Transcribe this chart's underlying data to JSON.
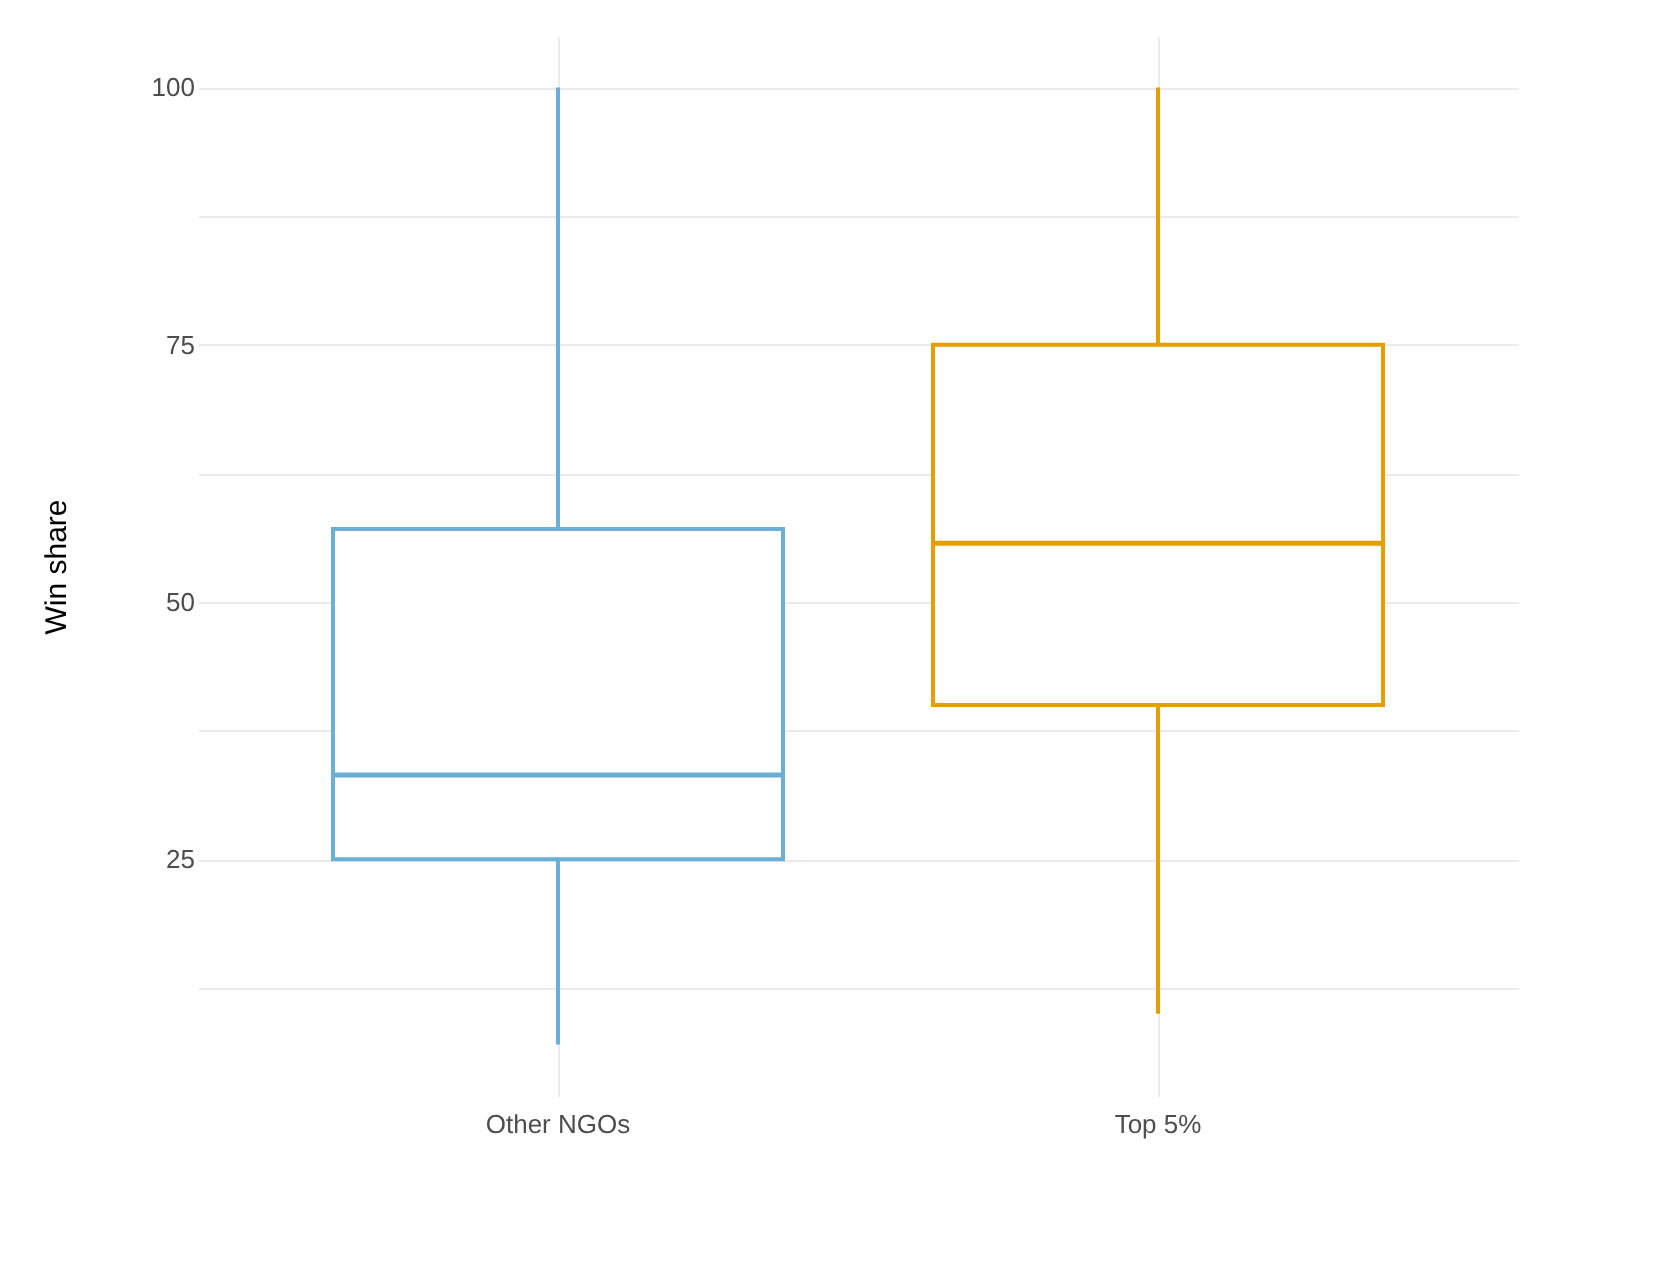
{
  "chart_data": {
    "type": "box",
    "ylabel": "Win share",
    "categories": [
      "Other NGOs",
      "Top 5%"
    ],
    "series": [
      {
        "color": "#6baed6",
        "boxes": [
          {
            "low": 7,
            "q1": 25,
            "median": 33.2,
            "q3": 57.1,
            "high": 100
          },
          null
        ]
      },
      {
        "color": "#e69f00",
        "boxes": [
          null,
          {
            "low": 10,
            "q1": 40,
            "median": 55.7,
            "q3": 75,
            "high": 100
          }
        ]
      }
    ],
    "ylim": [
      2,
      105
    ],
    "yticks": [
      {
        "value": 12.5,
        "label": null
      },
      25,
      {
        "value": 37.5,
        "label": null
      },
      50,
      {
        "value": 62.5,
        "label": null
      },
      75,
      {
        "value": 87.5,
        "label": null
      },
      100
    ],
    "grid": true
  }
}
